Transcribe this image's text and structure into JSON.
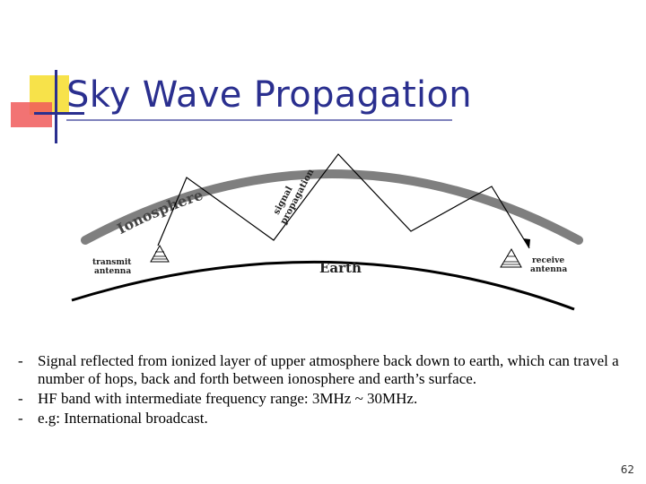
{
  "slide": {
    "title": "Sky Wave Propagation",
    "page_number": "62"
  },
  "diagram": {
    "ionosphere_label": "Ionosphere",
    "signal_label_line1": "signal",
    "signal_label_line2": "propagation",
    "earth_label": "Earth",
    "transmit_label_line1": "transmit",
    "transmit_label_line2": "antenna",
    "receive_label_line1": "receive",
    "receive_label_line2": "antenna"
  },
  "bullets": [
    {
      "marker": "-",
      "text": "Signal reflected from ionized layer of upper atmosphere back down to earth, which can travel a number of hops, back and forth between ionosphere and earth’s surface."
    },
    {
      "marker": "-",
      "text": "HF band with intermediate frequency range: 3MHz ~ 30MHz."
    },
    {
      "marker": "-",
      "text": "e.g: International broadcast."
    }
  ],
  "colors": {
    "title": "#2a2f8f",
    "ionosphere": "#7f7f7f",
    "earth": "#000000"
  }
}
